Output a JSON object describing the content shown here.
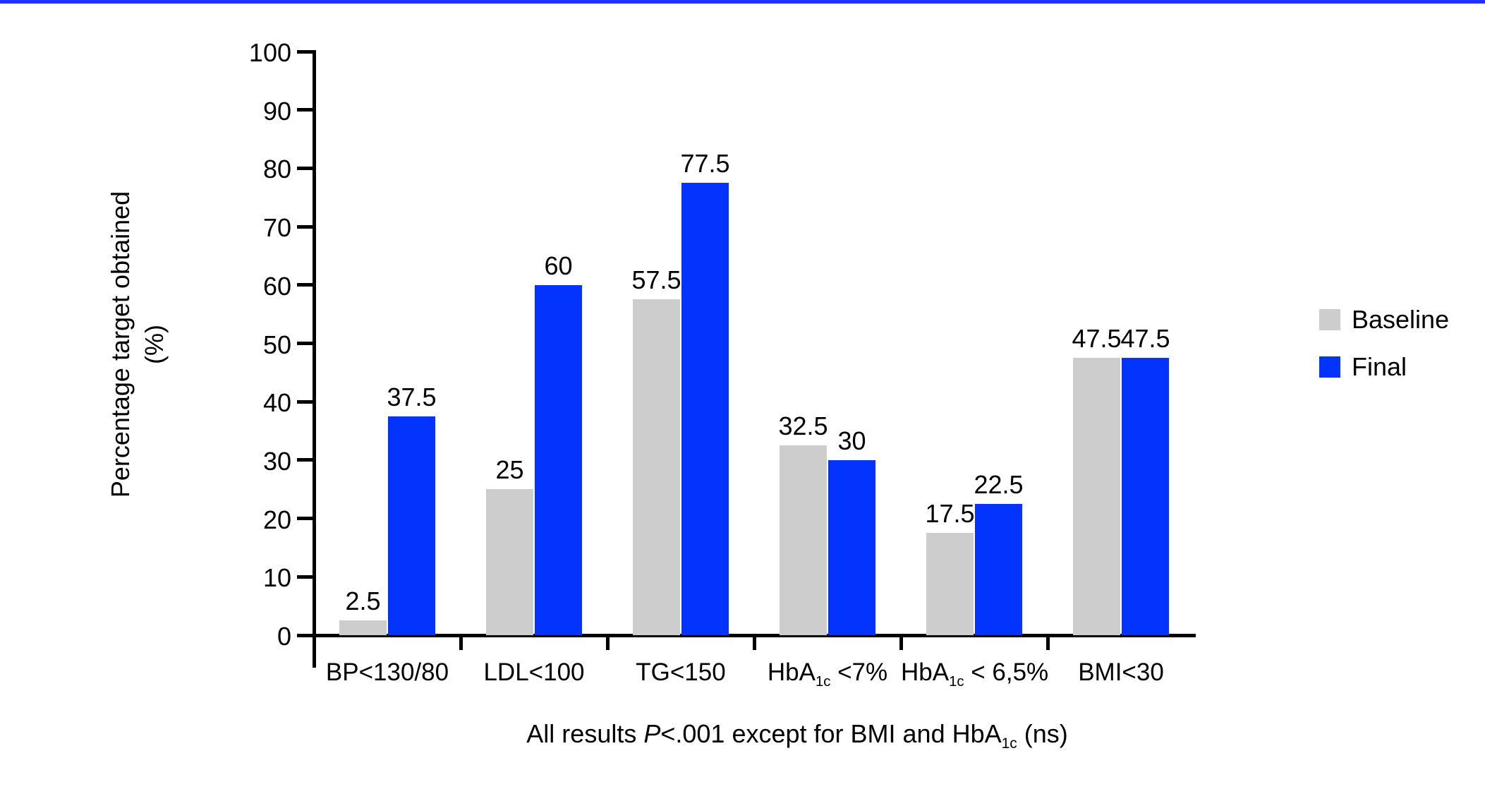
{
  "page": {
    "background": "#ffffff",
    "top_border_color": "#2333fe"
  },
  "chart_data": {
    "type": "bar",
    "title": "",
    "ylabel_line1": "Percentage target obtained",
    "ylabel_line2": "(%)",
    "ylim": [
      0,
      100
    ],
    "ytick_step": 10,
    "grid": false,
    "legend_position": "right",
    "axis_color": "#000000",
    "categories": [
      "BP<130/80",
      "LDL<100",
      "TG<150",
      "HbA_{1c} <7%",
      "HbA_{1c} < 6,5%",
      "BMI<30"
    ],
    "series": [
      {
        "name": "Baseline",
        "color": "#cdcdcd",
        "values": [
          2.5,
          25,
          57.5,
          32.5,
          17.5,
          47.5
        ],
        "labels": [
          "2.5",
          "25",
          "57.5",
          "32.5",
          "17.5",
          "47.5"
        ]
      },
      {
        "name": "Final",
        "color": "#0334fe",
        "values": [
          37.5,
          60,
          77.5,
          30,
          22.5,
          47.5
        ],
        "labels": [
          "37.5",
          "60",
          "77.5",
          "30",
          "22.5",
          "47.5"
        ]
      }
    ],
    "footnote": "All results *P*<.001 except for BMI and HbA_{1c} (ns)"
  }
}
